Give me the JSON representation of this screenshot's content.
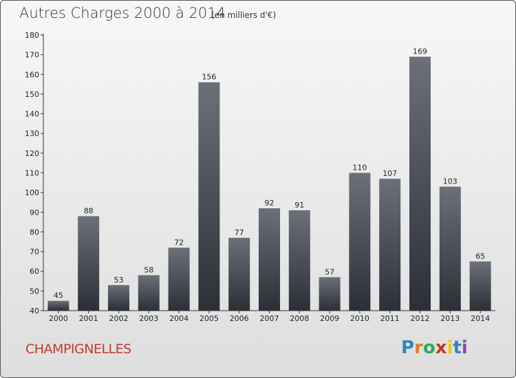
{
  "header": {
    "title": "Autres Charges 2000 à 2014",
    "subtitle": "(en milliers d'€)"
  },
  "footer": {
    "commune": "CHAMPIGNELLES",
    "logo_letters": [
      {
        "char": "P",
        "color": "#2e86c1"
      },
      {
        "char": "r",
        "color": "#e67e22"
      },
      {
        "char": "o",
        "color": "#27ae60"
      },
      {
        "char": "x",
        "color": "#c0392b"
      },
      {
        "char": "i",
        "color": "#f1c40f"
      },
      {
        "char": "t",
        "color": "#2e86c1"
      },
      {
        "char": "i",
        "color": "#8e44ad"
      }
    ]
  },
  "colors": {
    "bar_light": "#6b7079",
    "bar_dark": "#2b2f36",
    "axis": "#333333",
    "commune": "#c0392b"
  },
  "chart_data": {
    "type": "bar",
    "title": "Autres Charges 2000 à 2014",
    "subtitle": "(en milliers d'€)",
    "categories": [
      "2000",
      "2001",
      "2002",
      "2003",
      "2004",
      "2005",
      "2006",
      "2007",
      "2008",
      "2009",
      "2010",
      "2011",
      "2012",
      "2013",
      "2014"
    ],
    "values": [
      45,
      88,
      53,
      58,
      72,
      156,
      77,
      92,
      91,
      57,
      110,
      107,
      169,
      103,
      65
    ],
    "data_labels": [
      "45",
      "88",
      "53",
      "58",
      "72",
      "156",
      "77",
      "92",
      "91",
      "57",
      "110",
      "107",
      "169",
      "103",
      "65"
    ],
    "yticks": [
      "40",
      "50",
      "60",
      "70",
      "80",
      "90",
      "100",
      "110",
      "120",
      "130",
      "140",
      "150",
      "160",
      "170",
      "180"
    ],
    "ylim": [
      40,
      180
    ],
    "grid": false,
    "legend": "none"
  }
}
